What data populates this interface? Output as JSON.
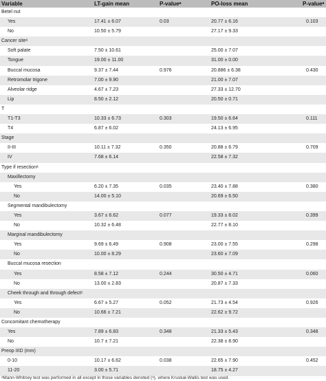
{
  "header": {
    "variable": "Variable",
    "lt_gain": "LT-gain mean",
    "p1": "P-valueᵃ",
    "po_loss": "PO-loss mean",
    "p2": "P-valueᵃ"
  },
  "rows": [
    {
      "label": "Betel nut",
      "indent": 0,
      "lt": "",
      "p1": "",
      "po": "",
      "p2": ""
    },
    {
      "label": "Yes",
      "indent": 1,
      "lt": "17.41 ± 6.07",
      "p1": "0.03",
      "po": "20.77 ± 6.16",
      "p2": "0.103"
    },
    {
      "label": "No",
      "indent": 1,
      "lt": "10.50 ± 5.79",
      "p1": "",
      "po": "27.17 ± 9.33",
      "p2": ""
    },
    {
      "label": "Cancer siteᵃ",
      "indent": 0,
      "lt": "",
      "p1": "",
      "po": "",
      "p2": ""
    },
    {
      "label": "Soft palate",
      "indent": 1,
      "lt": "7.50 ± 10.61",
      "p1": "",
      "po": "25.00 ± 7.07",
      "p2": ""
    },
    {
      "label": "Tongue",
      "indent": 1,
      "lt": "19.00 ± 11.00",
      "p1": "",
      "po": "31.00 ± 0.00",
      "p2": ""
    },
    {
      "label": "Buccal mucosa",
      "indent": 1,
      "lt": "9.37 ± 7.44",
      "p1": "0.976",
      "po": "20.886 ± 6.38",
      "p2": "0.430"
    },
    {
      "label": "Retromolar trigone",
      "indent": 1,
      "lt": "7.00 ± 9.90",
      "p1": "",
      "po": "21.00 ± 7.07",
      "p2": ""
    },
    {
      "label": "Alveolar ridge",
      "indent": 1,
      "lt": "4.67 ± 7.23",
      "p1": "",
      "po": "27.33 ± 12.70",
      "p2": ""
    },
    {
      "label": "Lip",
      "indent": 1,
      "lt": "8.50 ± 2.12",
      "p1": "",
      "po": "20.50 ± 0.71",
      "p2": ""
    },
    {
      "label": "T",
      "indent": 0,
      "lt": "",
      "p1": "",
      "po": "",
      "p2": ""
    },
    {
      "label": "T1-T3",
      "indent": 1,
      "lt": "10.33 ± 6.73",
      "p1": "0.303",
      "po": "19.50 ± 6.64",
      "p2": "0.111"
    },
    {
      "label": "T4",
      "indent": 1,
      "lt": "6.87 ± 6.02",
      "p1": "",
      "po": "24.13 ± 6.95",
      "p2": ""
    },
    {
      "label": "Stage",
      "indent": 0,
      "lt": "",
      "p1": "",
      "po": "",
      "p2": ""
    },
    {
      "label": "II-III",
      "indent": 1,
      "lt": "10.11 ± 7.32",
      "p1": "0.350",
      "po": "20.88 ± 6.79",
      "p2": "0.709"
    },
    {
      "label": "IV",
      "indent": 1,
      "lt": "7.68 ± 6.14",
      "p1": "",
      "po": "22.58 ± 7.32",
      "p2": ""
    },
    {
      "label": "Type if resectionᵃ",
      "indent": 0,
      "lt": "",
      "p1": "",
      "po": "",
      "p2": ""
    },
    {
      "label": "Maxillectomy",
      "indent": 1,
      "lt": "",
      "p1": "",
      "po": "",
      "p2": ""
    },
    {
      "label": "Yes",
      "indent": 2,
      "lt": "6.20 ± 7.35",
      "p1": "0.035",
      "po": "23.40 ± 7.88",
      "p2": "0.380"
    },
    {
      "label": "No",
      "indent": 2,
      "lt": "14.00 ± 5.10",
      "p1": "",
      "po": "20.69 ± 6.50",
      "p2": ""
    },
    {
      "label": "Segmental mandibulectomy",
      "indent": 1,
      "lt": "",
      "p1": "",
      "po": "",
      "p2": ""
    },
    {
      "label": "Yes",
      "indent": 2,
      "lt": "3.67 ± 6.62",
      "p1": "0.077",
      "po": "19.33 ± 8.02",
      "p2": "0.399"
    },
    {
      "label": "No",
      "indent": 2,
      "lt": "10.32 ± 6.48",
      "p1": "",
      "po": "22.77 ± 8.10",
      "p2": ""
    },
    {
      "label": "Marginal mandibulectomy",
      "indent": 1,
      "lt": "",
      "p1": "",
      "po": "",
      "p2": ""
    },
    {
      "label": "Yes",
      "indent": 2,
      "lt": "9.69 ± 6.49",
      "p1": "0.908",
      "po": "23.00 ± 7.55",
      "p2": "0.298"
    },
    {
      "label": "No",
      "indent": 2,
      "lt": "10.00 ± 8.29",
      "p1": "",
      "po": "23.60 ± 7.09",
      "p2": ""
    },
    {
      "label": "Buccal mucosa resection",
      "indent": 1,
      "lt": "",
      "p1": "",
      "po": "",
      "p2": ""
    },
    {
      "label": "Yes",
      "indent": 2,
      "lt": "8.58 ± 7.12",
      "p1": "0.244",
      "po": "30.50 ± 4.71",
      "p2": "0.060"
    },
    {
      "label": "No",
      "indent": 2,
      "lt": "13.00 ± 2.83",
      "p1": "",
      "po": "20.87 ± 7.33",
      "p2": ""
    },
    {
      "label": "Cheek through and through defectᵃ",
      "indent": 1,
      "lt": "",
      "p1": "",
      "po": "",
      "p2": ""
    },
    {
      "label": "Yes",
      "indent": 2,
      "lt": "6.67 ± 5.27",
      "p1": "0.052",
      "po": "21.73 ± 4.54",
      "p2": "0.926"
    },
    {
      "label": "No",
      "indent": 2,
      "lt": "10.66 ± 7.21",
      "p1": "",
      "po": "22.62 ± 9.72",
      "p2": ""
    },
    {
      "label": "Concomitant chemotherapy",
      "indent": 0,
      "lt": "",
      "p1": "",
      "po": "",
      "p2": ""
    },
    {
      "label": "Yes",
      "indent": 1,
      "lt": "7.89 ± 6.83",
      "p1": "0.348",
      "po": "21.33 ± 5.43",
      "p2": "0.348"
    },
    {
      "label": "No",
      "indent": 1,
      "lt": "10.7 ± 7.21",
      "p1": "",
      "po": "22.38 ± 8.90",
      "p2": ""
    },
    {
      "label": "Preop IIID (mm)",
      "indent": 0,
      "lt": "",
      "p1": "",
      "po": "",
      "p2": ""
    },
    {
      "label": "0-10",
      "indent": 1,
      "lt": "10.17 ± 6.62",
      "p1": "0.038",
      "po": "22.65 ± 7.90",
      "p2": "0.452"
    },
    {
      "label": "11-20",
      "indent": 1,
      "lt": "3.00 ± 5.71",
      "p1": "",
      "po": "18.75 ± 4.27",
      "p2": ""
    }
  ],
  "footnote": "ᵃMann-Whitney test was performed in all except in those variables denoted (ᵃ), where Kruskal-Wallis test was used."
}
